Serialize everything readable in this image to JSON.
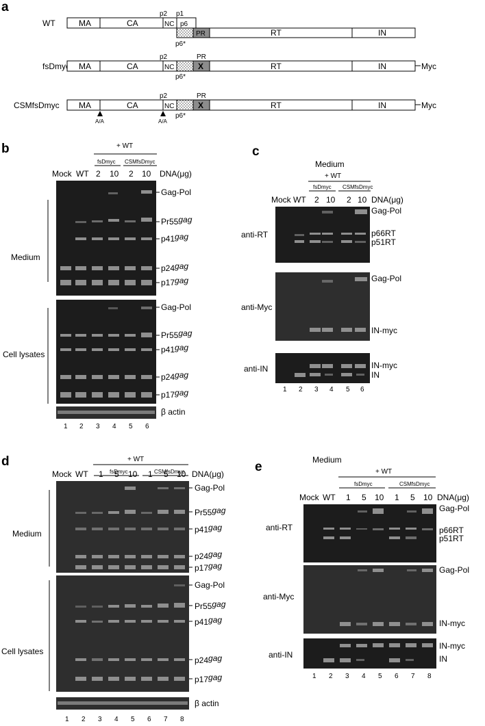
{
  "panels": {
    "a": "a",
    "b": "b",
    "c": "c",
    "d": "d",
    "e": "e"
  },
  "panel_a": {
    "constructs": [
      {
        "name": "WT",
        "domains": [
          "MA",
          "CA",
          "NC",
          "p6",
          "PR",
          "RT",
          "IN"
        ],
        "top_labels": [
          "p2",
          "p1"
        ],
        "star": "p6*",
        "tag": ""
      },
      {
        "name": "fsDmyc",
        "domains": [
          "MA",
          "CA",
          "NC",
          "RT",
          "IN"
        ],
        "top_labels": [
          "p2",
          "PR"
        ],
        "mark": "X",
        "star": "p6*",
        "tag": "Myc"
      },
      {
        "name": "CSMfsDmyc",
        "domains": [
          "MA",
          "CA",
          "NC",
          "RT",
          "IN"
        ],
        "top_labels": [
          "p2",
          "PR"
        ],
        "mark": "X",
        "star": "p6*",
        "tag": "Myc",
        "mutations": [
          "A/A",
          "A/A"
        ]
      }
    ]
  },
  "panel_b": {
    "header": "+ WT",
    "groups": [
      "fsDmyc",
      "CSMfsDmyc"
    ],
    "lane_heads": [
      "Mock",
      "WT",
      "2",
      "10",
      "2",
      "10"
    ],
    "dna_label": "DNA(μg)",
    "sections": [
      "Medium",
      "Cell lysates"
    ],
    "bands_medium": [
      "Gag-Pol",
      "Pr55",
      "p41",
      "p24",
      "p17"
    ],
    "bands_cell": [
      "Gag-Pol",
      "Pr55",
      "p41",
      "p24",
      "p17"
    ],
    "gag": "gag",
    "actin": "β actin",
    "lanes": [
      "1",
      "2",
      "3",
      "4",
      "5",
      "6"
    ]
  },
  "panel_c": {
    "title": "Medium",
    "header": "+ WT",
    "groups": [
      "fsDmyc",
      "CSMfsDmyc"
    ],
    "lane_heads": [
      "Mock",
      "WT",
      "2",
      "10",
      "2",
      "10"
    ],
    "dna_label": "DNA(μg)",
    "antibodies": [
      "anti-RT",
      "anti-Myc",
      "anti-IN"
    ],
    "bands_rt": [
      "Gag-Pol",
      "p66RT",
      "p51RT"
    ],
    "bands_myc": [
      "Gag-Pol",
      "IN-myc"
    ],
    "bands_in": [
      "IN-myc",
      "IN"
    ],
    "lanes": [
      "1",
      "2",
      "3",
      "4",
      "5",
      "6"
    ]
  },
  "panel_d": {
    "header": "+ WT",
    "groups": [
      "fsDmyc",
      "CSMfsDmyc"
    ],
    "lane_heads": [
      "Mock",
      "WT",
      "1",
      "5",
      "10",
      "1",
      "5",
      "10"
    ],
    "dna_label": "DNA(μg)",
    "sections": [
      "Medium",
      "Cell lysates"
    ],
    "bands_medium": [
      "Gag-Pol",
      "Pr55",
      "p41",
      "p24",
      "p17"
    ],
    "bands_cell": [
      "Gag-Pol",
      "Pr55",
      "p41",
      "p24",
      "p17"
    ],
    "gag": "gag",
    "actin": "β actin",
    "lanes": [
      "1",
      "2",
      "3",
      "4",
      "5",
      "6",
      "7",
      "8"
    ]
  },
  "panel_e": {
    "title": "Medium",
    "header": "+ WT",
    "groups": [
      "fsDmyc",
      "CSMfsDmyc"
    ],
    "lane_heads": [
      "Mock",
      "WT",
      "1",
      "5",
      "10",
      "1",
      "5",
      "10"
    ],
    "dna_label": "DNA(μg)",
    "antibodies": [
      "anti-RT",
      "anti-Myc",
      "anti-IN"
    ],
    "bands_rt": [
      "Gag-Pol",
      "p66RT",
      "p51RT"
    ],
    "bands_myc": [
      "Gag-Pol",
      "IN-myc"
    ],
    "bands_in": [
      "IN-myc",
      "IN"
    ],
    "lanes": [
      "1",
      "2",
      "3",
      "4",
      "5",
      "6",
      "7",
      "8"
    ]
  }
}
